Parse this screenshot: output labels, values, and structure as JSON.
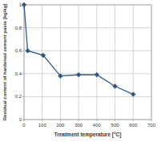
{
  "chart_data": {
    "type": "line",
    "x_label": "Treatment temperature [°C]",
    "y_label": "Residual content of hardened cement paste [kg/kg]",
    "x": [
      0,
      20,
      105,
      200,
      300,
      400,
      500,
      600
    ],
    "values": [
      1,
      0.6,
      0.56,
      0.38,
      0.39,
      0.39,
      0.29,
      0.22
    ],
    "color": "#2b5a8a",
    "marker": "diamond",
    "line_style": "solid",
    "xlim": [
      0,
      700
    ],
    "xticks": [
      0,
      100,
      200,
      300,
      400,
      500,
      600,
      700
    ],
    "ylim": [
      0,
      1
    ],
    "yticks": [
      0,
      0.2,
      0.4,
      0.6,
      0.8,
      1
    ],
    "grid": true
  }
}
